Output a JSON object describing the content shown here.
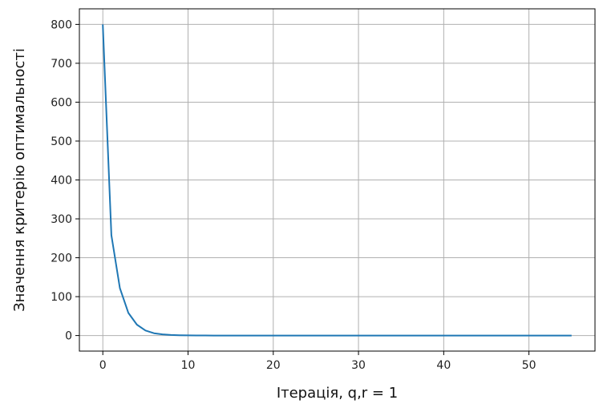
{
  "chart_data": {
    "type": "line",
    "title": "",
    "xlabel": "Ітерація, q,r = 1",
    "ylabel": "Значення критерію оптимальності",
    "xlim": [
      -2.75,
      57.75
    ],
    "ylim": [
      -40,
      840
    ],
    "xticks": [
      0,
      10,
      20,
      30,
      40,
      50
    ],
    "yticks": [
      0,
      100,
      200,
      300,
      400,
      500,
      600,
      700,
      800
    ],
    "grid": true,
    "legend": "none",
    "series": [
      {
        "color": "#1f77b4",
        "x": [
          0,
          1,
          2,
          3,
          4,
          5,
          6,
          7,
          8,
          9,
          10,
          11,
          12,
          13,
          14,
          15,
          16,
          17,
          18,
          19,
          20,
          21,
          22,
          23,
          24,
          25,
          26,
          27,
          28,
          29,
          30,
          31,
          32,
          33,
          34,
          35,
          36,
          37,
          38,
          39,
          40,
          41,
          42,
          43,
          44,
          45,
          46,
          47,
          48,
          49,
          50,
          51,
          52,
          53,
          54,
          55
        ],
        "y": [
          800,
          258,
          122,
          58,
          28,
          13,
          6,
          3,
          1.5,
          0.8,
          0.4,
          0.2,
          0.1,
          0.05,
          0.03,
          0.02,
          0.01,
          0,
          0,
          0,
          0,
          0,
          0,
          0,
          0,
          0,
          0,
          0,
          0,
          0,
          0,
          0,
          0,
          0,
          0,
          0,
          0,
          0,
          0,
          0,
          0,
          0,
          0,
          0,
          0,
          0,
          0,
          0,
          0,
          0,
          0,
          0,
          0,
          0,
          0,
          0
        ]
      }
    ]
  }
}
